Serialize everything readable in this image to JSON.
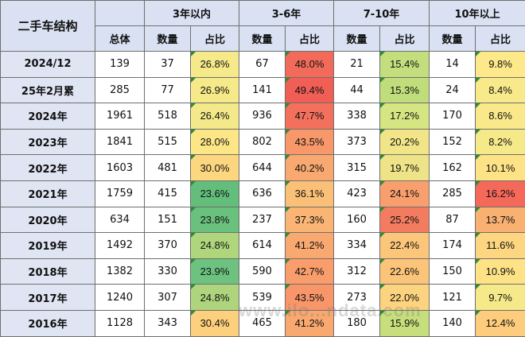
{
  "header": {
    "corner": "二手车结构",
    "total": "总体",
    "groups": [
      "3年以内",
      "3-6年",
      "7-10年",
      "10年以上"
    ],
    "qty": "数量",
    "share": "占比"
  },
  "rows": [
    {
      "label": "2024/12",
      "total": "139",
      "cells": [
        [
          "37",
          "26.8%"
        ],
        [
          "67",
          "48.0%"
        ],
        [
          "21",
          "15.4%"
        ],
        [
          "14",
          "9.8%"
        ]
      ]
    },
    {
      "label": "25年2月累",
      "total": "285",
      "cells": [
        [
          "77",
          "26.9%"
        ],
        [
          "141",
          "49.4%"
        ],
        [
          "44",
          "15.3%"
        ],
        [
          "24",
          "8.4%"
        ]
      ]
    },
    {
      "label": "2024年",
      "total": "1961",
      "cells": [
        [
          "518",
          "26.4%"
        ],
        [
          "936",
          "47.7%"
        ],
        [
          "338",
          "17.2%"
        ],
        [
          "170",
          "8.6%"
        ]
      ]
    },
    {
      "label": "2023年",
      "total": "1841",
      "cells": [
        [
          "515",
          "28.0%"
        ],
        [
          "802",
          "43.5%"
        ],
        [
          "373",
          "20.2%"
        ],
        [
          "152",
          "8.2%"
        ]
      ]
    },
    {
      "label": "2022年",
      "total": "1603",
      "cells": [
        [
          "481",
          "30.0%"
        ],
        [
          "644",
          "40.2%"
        ],
        [
          "315",
          "19.7%"
        ],
        [
          "162",
          "10.1%"
        ]
      ]
    },
    {
      "label": "2021年",
      "total": "1759",
      "cells": [
        [
          "415",
          "23.6%"
        ],
        [
          "636",
          "36.1%"
        ],
        [
          "423",
          "24.1%"
        ],
        [
          "285",
          "16.2%"
        ]
      ]
    },
    {
      "label": "2020年",
      "total": "634",
      "cells": [
        [
          "151",
          "23.8%"
        ],
        [
          "237",
          "37.3%"
        ],
        [
          "160",
          "25.2%"
        ],
        [
          "87",
          "13.7%"
        ]
      ]
    },
    {
      "label": "2019年",
      "total": "1492",
      "cells": [
        [
          "370",
          "24.8%"
        ],
        [
          "614",
          "41.2%"
        ],
        [
          "334",
          "22.4%"
        ],
        [
          "174",
          "11.6%"
        ]
      ]
    },
    {
      "label": "2018年",
      "total": "1382",
      "cells": [
        [
          "330",
          "23.9%"
        ],
        [
          "590",
          "42.7%"
        ],
        [
          "312",
          "22.6%"
        ],
        [
          "150",
          "10.9%"
        ]
      ]
    },
    {
      "label": "2017年",
      "total": "1240",
      "cells": [
        [
          "307",
          "24.8%"
        ],
        [
          "539",
          "43.5%"
        ],
        [
          "273",
          "22.0%"
        ],
        [
          "121",
          "9.7%"
        ]
      ]
    },
    {
      "label": "2016年",
      "total": "1128",
      "cells": [
        [
          "343",
          "30.4%"
        ],
        [
          "465",
          "41.2%"
        ],
        [
          "180",
          "15.9%"
        ],
        [
          "140",
          "12.4%"
        ]
      ]
    }
  ],
  "shading": [
    [
      "#f6e98a",
      "#f26b5a",
      "#c3de7c",
      "#fde88a"
    ],
    [
      "#f6e98a",
      "#f05e55",
      "#c0dd7b",
      "#f8e98a"
    ],
    [
      "#f3e98a",
      "#f3705c",
      "#d4e582",
      "#f9e98a"
    ],
    [
      "#fde685",
      "#f7976a",
      "#f1e588",
      "#f6e98a"
    ],
    [
      "#fdd77f",
      "#f9a86f",
      "#eee387",
      "#fde385"
    ],
    [
      "#63be7b",
      "#fbc077",
      "#f99f6d",
      "#f5695a"
    ],
    [
      "#6ac17e",
      "#fab474",
      "#f37c60",
      "#f9b172"
    ],
    [
      "#b0d67d",
      "#f9a86f",
      "#fcc67a",
      "#fed580"
    ],
    [
      "#6cc27e",
      "#f99d6c",
      "#fcc478",
      "#fde385"
    ],
    [
      "#aed57d",
      "#f8966a",
      "#fcd37e",
      "#f6e98a"
    ],
    [
      "#fdd07d",
      "#f9a86f",
      "#c6df7c",
      "#fdcd7d"
    ]
  ],
  "watermark": "www.ilo...ndata.com"
}
